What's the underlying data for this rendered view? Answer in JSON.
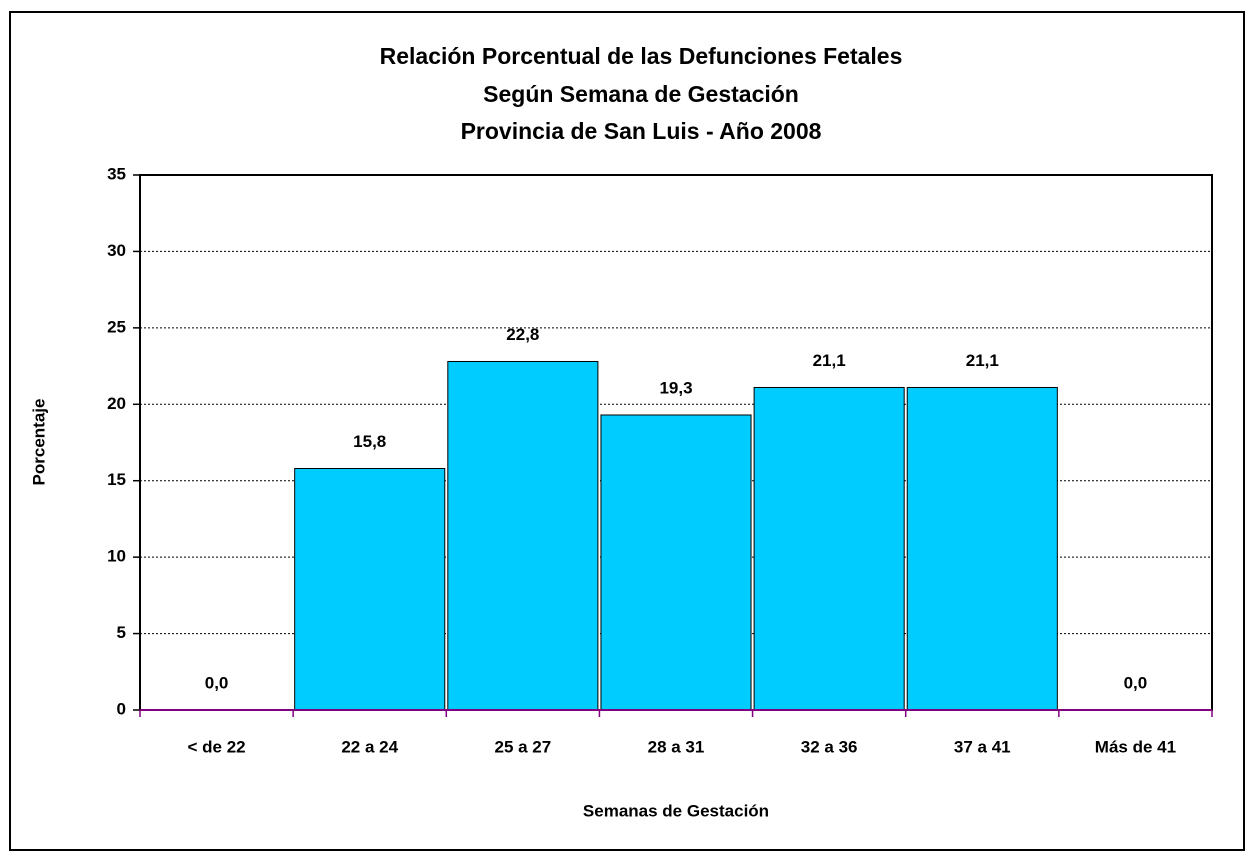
{
  "chart_data": {
    "type": "bar",
    "title": [
      "Relación Porcentual de las Defunciones Fetales",
      "Según Semana de Gestación",
      "Provincia de San Luis - Año 2008"
    ],
    "x_label": "Semanas de Gestación",
    "y_label": "Porcentaje",
    "categories": [
      "< de 22",
      "22 a 24",
      "25 a 27",
      "28 a 31",
      "32 a 36",
      "37 a 41",
      "Más de 41"
    ],
    "values": [
      0,
      15.8,
      22.8,
      19.3,
      21.1,
      21.1,
      0
    ],
    "value_labels": [
      "0,0",
      "15,8",
      "22,8",
      "19,3",
      "21,1",
      "21,1",
      "0,0"
    ],
    "color": "#00ccff",
    "ylim": [
      0,
      35
    ],
    "yticks": [
      0,
      5,
      10,
      15,
      20,
      25,
      30,
      35
    ],
    "grid": true
  }
}
